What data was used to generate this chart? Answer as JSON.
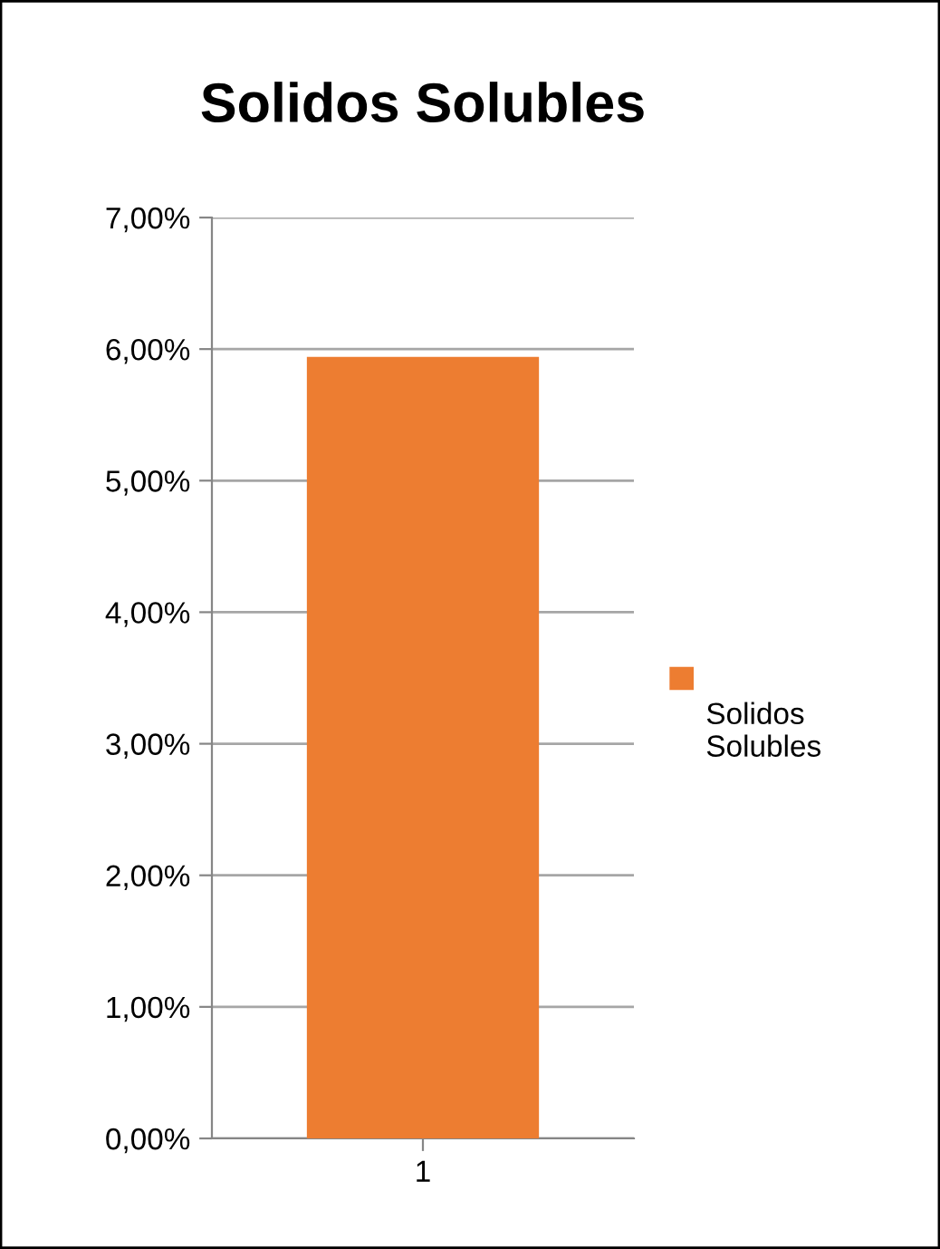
{
  "chart_data": {
    "type": "bar",
    "title": "Solidos Solubles",
    "categories": [
      "1"
    ],
    "series": [
      {
        "name": "Solidos Solubles",
        "color": "#ed7d31",
        "values": [
          5.94
        ]
      }
    ],
    "ylim": [
      0,
      7
    ],
    "yticks": [
      {
        "value": 0,
        "label": "0,00%"
      },
      {
        "value": 1,
        "label": "1,00%"
      },
      {
        "value": 2,
        "label": "2,00%"
      },
      {
        "value": 3,
        "label": "3,00%"
      },
      {
        "value": 4,
        "label": "4,00%"
      },
      {
        "value": 5,
        "label": "5,00%"
      },
      {
        "value": 6,
        "label": "6,00%"
      },
      {
        "value": 7,
        "label": "7,00%"
      }
    ],
    "grid": "y",
    "legend": "right"
  }
}
